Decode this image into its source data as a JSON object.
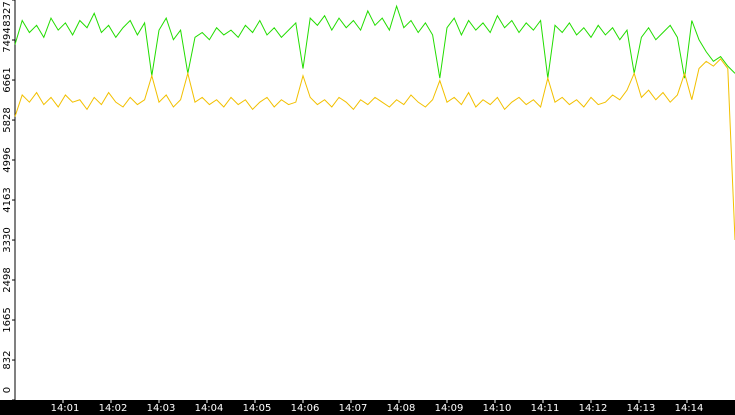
{
  "chart_data": {
    "type": "line",
    "x": [
      0,
      0.15,
      0.3,
      0.45,
      0.6,
      0.75,
      0.9,
      1.05,
      1.2,
      1.35,
      1.5,
      1.65,
      1.8,
      1.95,
      2.1,
      2.25,
      2.4,
      2.55,
      2.7,
      2.85,
      3,
      3.15,
      3.3,
      3.45,
      3.6,
      3.75,
      3.9,
      4.05,
      4.2,
      4.35,
      4.5,
      4.65,
      4.8,
      4.95,
      5.1,
      5.25,
      5.4,
      5.55,
      5.7,
      5.85,
      6,
      6.15,
      6.3,
      6.45,
      6.6,
      6.75,
      6.9,
      7.05,
      7.2,
      7.35,
      7.5,
      7.65,
      7.8,
      7.95,
      8.1,
      8.25,
      8.4,
      8.55,
      8.7,
      8.85,
      9,
      9.15,
      9.3,
      9.45,
      9.6,
      9.75,
      9.9,
      10.05,
      10.2,
      10.35,
      10.5,
      10.65,
      10.8,
      10.95,
      11.1,
      11.25,
      11.4,
      11.55,
      11.7,
      11.85,
      12,
      12.15,
      12.3,
      12.45,
      12.6,
      12.75,
      12.9,
      13.05,
      13.2,
      13.35,
      13.5,
      13.65,
      13.8,
      13.95,
      14.1,
      14.25,
      14.4,
      14.55,
      14.7,
      14.85,
      15
    ],
    "series": [
      {
        "color": "#22dd00",
        "values": [
          7400,
          7900,
          7650,
          7800,
          7550,
          7950,
          7700,
          7850,
          7600,
          7900,
          7750,
          8050,
          7650,
          7800,
          7550,
          7750,
          7900,
          7600,
          7850,
          6750,
          7700,
          7950,
          7500,
          7700,
          6800,
          7550,
          7650,
          7500,
          7750,
          7600,
          7700,
          7550,
          7800,
          7650,
          7900,
          7600,
          7750,
          7550,
          7700,
          7850,
          6900,
          7950,
          7800,
          8000,
          7700,
          7950,
          7750,
          7900,
          7700,
          8100,
          7800,
          7950,
          7700,
          8200,
          7750,
          7900,
          7650,
          7850,
          7600,
          6700,
          7750,
          7950,
          7600,
          7900,
          7700,
          7850,
          7650,
          8000,
          7750,
          7900,
          7650,
          7850,
          7700,
          7900,
          6700,
          7800,
          7650,
          7850,
          7600,
          7750,
          7550,
          7800,
          7600,
          7750,
          7500,
          7700,
          6800,
          7550,
          7750,
          7500,
          7650,
          7800,
          7550,
          6700,
          7900,
          7500,
          7250,
          7050,
          7150,
          6950,
          6800
        ]
      },
      {
        "color": "#f2c000",
        "values": [
          5900,
          6350,
          6200,
          6400,
          6150,
          6300,
          6100,
          6350,
          6200,
          6250,
          6050,
          6300,
          6150,
          6400,
          6200,
          6100,
          6300,
          6150,
          6250,
          6750,
          6200,
          6350,
          6100,
          6250,
          6800,
          6200,
          6300,
          6150,
          6250,
          6100,
          6300,
          6150,
          6250,
          6050,
          6200,
          6300,
          6100,
          6250,
          6150,
          6200,
          6750,
          6300,
          6150,
          6250,
          6100,
          6300,
          6200,
          6050,
          6250,
          6150,
          6300,
          6200,
          6100,
          6250,
          6150,
          6350,
          6200,
          6100,
          6250,
          6650,
          6200,
          6300,
          6150,
          6400,
          6100,
          6250,
          6150,
          6300,
          6050,
          6200,
          6300,
          6150,
          6250,
          6100,
          6700,
          6200,
          6300,
          6150,
          6250,
          6100,
          6300,
          6150,
          6200,
          6350,
          6250,
          6450,
          6800,
          6300,
          6450,
          6250,
          6400,
          6200,
          6350,
          6800,
          6250,
          6900,
          7050,
          6950,
          7100,
          6900,
          3330
        ]
      }
    ],
    "xlim": [
      0,
      15
    ],
    "xticks": [
      {
        "value": 1,
        "label": "14:01"
      },
      {
        "value": 2,
        "label": "14:02"
      },
      {
        "value": 3,
        "label": "14:03"
      },
      {
        "value": 4,
        "label": "14:04"
      },
      {
        "value": 5,
        "label": "14:05"
      },
      {
        "value": 6,
        "label": "14:06"
      },
      {
        "value": 7,
        "label": "14:07"
      },
      {
        "value": 8,
        "label": "14:08"
      },
      {
        "value": 9,
        "label": "14:09"
      },
      {
        "value": 10,
        "label": "14:10"
      },
      {
        "value": 11,
        "label": "14:11"
      },
      {
        "value": 12,
        "label": "14:12"
      },
      {
        "value": 13,
        "label": "14:13"
      },
      {
        "value": 14,
        "label": "14:14"
      }
    ],
    "ylim": [
      0,
      8327
    ],
    "yticks": [
      0,
      832,
      1665,
      2498,
      3330,
      4163,
      4996,
      5828,
      6661,
      7494,
      8327
    ]
  }
}
